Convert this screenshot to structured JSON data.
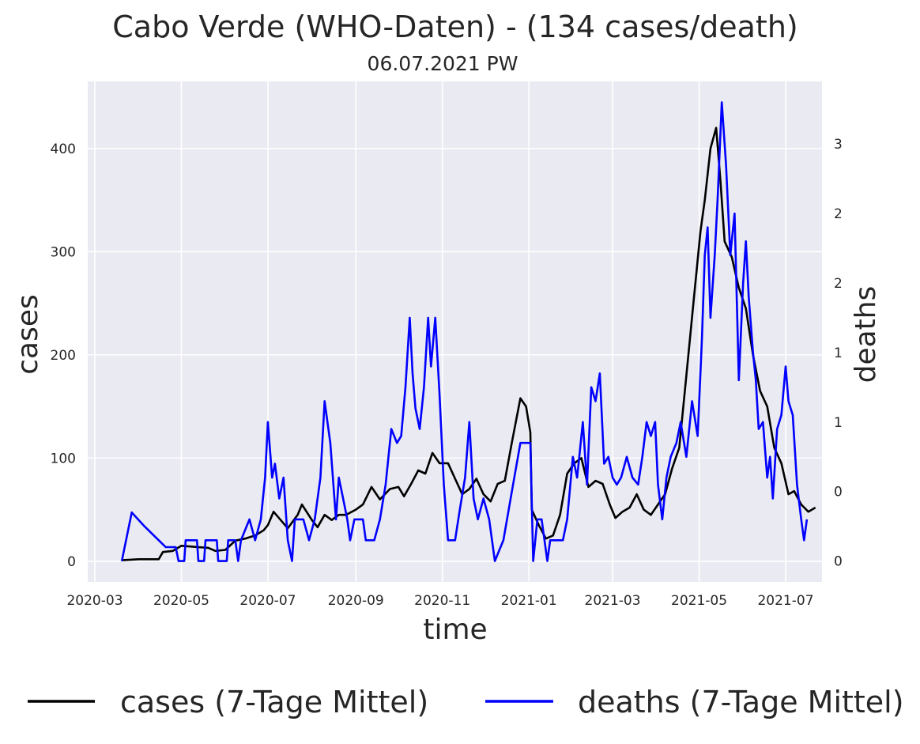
{
  "chart_data": {
    "type": "line",
    "title": "Cabo Verde (WHO-Daten) - (134 cases/death)",
    "subtitle": "06.07.2021 PW",
    "xlabel": "time",
    "ylabel_left": "cases",
    "ylabel_right": "deaths",
    "x_ticks": [
      "2020-03",
      "2020-05",
      "2020-07",
      "2020-09",
      "2020-11",
      "2021-01",
      "2021-03",
      "2021-05",
      "2021-07"
    ],
    "y_ticks_left": [
      "0",
      "100",
      "200",
      "300",
      "400"
    ],
    "y_ticks_right": [
      "0",
      "0",
      "1",
      "1",
      "2",
      "2",
      "3"
    ],
    "ylim_left": [
      -20,
      465
    ],
    "ylim_right": [
      -0.15,
      3.45
    ],
    "grid": true,
    "legend_position": "bottom",
    "colors": {
      "cases": "#000000",
      "deaths": "#0000ff",
      "background": "#eaeaf2",
      "grid": "#ffffff"
    },
    "series": [
      {
        "name": "cases (7-Tage Mittel)",
        "axis": "left",
        "points": [
          [
            "2020-03-20",
            1
          ],
          [
            "2020-04-01",
            2
          ],
          [
            "2020-04-15",
            2
          ],
          [
            "2020-04-18",
            9
          ],
          [
            "2020-04-25",
            10
          ],
          [
            "2020-05-01",
            15
          ],
          [
            "2020-05-10",
            14
          ],
          [
            "2020-05-20",
            13
          ],
          [
            "2020-05-25",
            10
          ],
          [
            "2020-06-01",
            11
          ],
          [
            "2020-06-08",
            20
          ],
          [
            "2020-06-15",
            22
          ],
          [
            "2020-06-22",
            25
          ],
          [
            "2020-06-28",
            30
          ],
          [
            "2020-07-01",
            35
          ],
          [
            "2020-07-05",
            48
          ],
          [
            "2020-07-10",
            40
          ],
          [
            "2020-07-15",
            32
          ],
          [
            "2020-07-22",
            45
          ],
          [
            "2020-07-25",
            55
          ],
          [
            "2020-08-01",
            40
          ],
          [
            "2020-08-05",
            33
          ],
          [
            "2020-08-10",
            45
          ],
          [
            "2020-08-15",
            40
          ],
          [
            "2020-08-20",
            45
          ],
          [
            "2020-08-25",
            45
          ],
          [
            "2020-09-01",
            50
          ],
          [
            "2020-09-06",
            55
          ],
          [
            "2020-09-12",
            72
          ],
          [
            "2020-09-18",
            60
          ],
          [
            "2020-09-25",
            70
          ],
          [
            "2020-10-01",
            72
          ],
          [
            "2020-10-05",
            63
          ],
          [
            "2020-10-10",
            75
          ],
          [
            "2020-10-15",
            88
          ],
          [
            "2020-10-20",
            85
          ],
          [
            "2020-10-25",
            105
          ],
          [
            "2020-10-30",
            95
          ],
          [
            "2020-11-05",
            95
          ],
          [
            "2020-11-10",
            80
          ],
          [
            "2020-11-15",
            65
          ],
          [
            "2020-11-20",
            70
          ],
          [
            "2020-11-25",
            80
          ],
          [
            "2020-11-30",
            65
          ],
          [
            "2020-12-05",
            58
          ],
          [
            "2020-12-10",
            75
          ],
          [
            "2020-12-15",
            78
          ],
          [
            "2020-12-20",
            115
          ],
          [
            "2020-12-26",
            158
          ],
          [
            "2020-12-30",
            150
          ],
          [
            "2021-01-02",
            125
          ],
          [
            "2021-01-03",
            50
          ],
          [
            "2021-01-08",
            35
          ],
          [
            "2021-01-13",
            22
          ],
          [
            "2021-01-18",
            25
          ],
          [
            "2021-01-23",
            45
          ],
          [
            "2021-01-28",
            85
          ],
          [
            "2021-02-02",
            95
          ],
          [
            "2021-02-07",
            100
          ],
          [
            "2021-02-12",
            72
          ],
          [
            "2021-02-17",
            78
          ],
          [
            "2021-02-22",
            75
          ],
          [
            "2021-02-27",
            55
          ],
          [
            "2021-03-03",
            42
          ],
          [
            "2021-03-08",
            48
          ],
          [
            "2021-03-13",
            52
          ],
          [
            "2021-03-18",
            65
          ],
          [
            "2021-03-23",
            50
          ],
          [
            "2021-03-28",
            45
          ],
          [
            "2021-04-02",
            55
          ],
          [
            "2021-04-07",
            65
          ],
          [
            "2021-04-12",
            90
          ],
          [
            "2021-04-17",
            110
          ],
          [
            "2021-04-22",
            180
          ],
          [
            "2021-04-27",
            250
          ],
          [
            "2021-05-02",
            320
          ],
          [
            "2021-05-05",
            350
          ],
          [
            "2021-05-09",
            400
          ],
          [
            "2021-05-13",
            420
          ],
          [
            "2021-05-16",
            370
          ],
          [
            "2021-05-19",
            310
          ],
          [
            "2021-05-24",
            295
          ],
          [
            "2021-05-29",
            265
          ],
          [
            "2021-06-03",
            245
          ],
          [
            "2021-06-08",
            200
          ],
          [
            "2021-06-13",
            165
          ],
          [
            "2021-06-18",
            150
          ],
          [
            "2021-06-23",
            110
          ],
          [
            "2021-06-28",
            95
          ],
          [
            "2021-07-03",
            65
          ],
          [
            "2021-07-07",
            68
          ],
          [
            "2021-07-12",
            55
          ],
          [
            "2021-07-17",
            48
          ],
          [
            "2021-07-22",
            52
          ]
        ]
      },
      {
        "name": "deaths (7-Tage Mittel)",
        "axis": "right",
        "points": [
          [
            "2020-03-20",
            0
          ],
          [
            "2020-03-27",
            0.35
          ],
          [
            "2020-04-05",
            0.25
          ],
          [
            "2020-04-15",
            0.15
          ],
          [
            "2020-04-20",
            0.1
          ],
          [
            "2020-04-27",
            0.1
          ],
          [
            "2020-04-29",
            0
          ],
          [
            "2020-05-03",
            0
          ],
          [
            "2020-05-04",
            0.15
          ],
          [
            "2020-05-12",
            0.15
          ],
          [
            "2020-05-13",
            0
          ],
          [
            "2020-05-17",
            0
          ],
          [
            "2020-05-18",
            0.15
          ],
          [
            "2020-05-26",
            0.15
          ],
          [
            "2020-05-27",
            0
          ],
          [
            "2020-06-02",
            0
          ],
          [
            "2020-06-03",
            0.15
          ],
          [
            "2020-06-08",
            0.15
          ],
          [
            "2020-06-10",
            0
          ],
          [
            "2020-06-12",
            0.15
          ],
          [
            "2020-06-18",
            0.3
          ],
          [
            "2020-06-22",
            0.15
          ],
          [
            "2020-06-26",
            0.3
          ],
          [
            "2020-06-29",
            0.6
          ],
          [
            "2020-07-01",
            1.0
          ],
          [
            "2020-07-04",
            0.6
          ],
          [
            "2020-07-06",
            0.7
          ],
          [
            "2020-07-09",
            0.45
          ],
          [
            "2020-07-12",
            0.6
          ],
          [
            "2020-07-15",
            0.15
          ],
          [
            "2020-07-18",
            0
          ],
          [
            "2020-07-20",
            0.3
          ],
          [
            "2020-07-26",
            0.3
          ],
          [
            "2020-07-30",
            0.15
          ],
          [
            "2020-08-03",
            0.3
          ],
          [
            "2020-08-07",
            0.6
          ],
          [
            "2020-08-10",
            1.15
          ],
          [
            "2020-08-14",
            0.85
          ],
          [
            "2020-08-18",
            0.3
          ],
          [
            "2020-08-20",
            0.6
          ],
          [
            "2020-08-23",
            0.45
          ],
          [
            "2020-08-26",
            0.3
          ],
          [
            "2020-08-28",
            0.15
          ],
          [
            "2020-08-31",
            0.3
          ],
          [
            "2020-09-06",
            0.3
          ],
          [
            "2020-09-08",
            0.15
          ],
          [
            "2020-09-14",
            0.15
          ],
          [
            "2020-09-18",
            0.3
          ],
          [
            "2020-09-22",
            0.55
          ],
          [
            "2020-09-26",
            0.95
          ],
          [
            "2020-09-30",
            0.85
          ],
          [
            "2020-10-03",
            0.9
          ],
          [
            "2020-10-06",
            1.25
          ],
          [
            "2020-10-09",
            1.75
          ],
          [
            "2020-10-11",
            1.35
          ],
          [
            "2020-10-13",
            1.1
          ],
          [
            "2020-10-16",
            0.95
          ],
          [
            "2020-10-19",
            1.25
          ],
          [
            "2020-10-22",
            1.75
          ],
          [
            "2020-10-24",
            1.4
          ],
          [
            "2020-10-27",
            1.75
          ],
          [
            "2020-10-30",
            1.2
          ],
          [
            "2020-11-02",
            0.55
          ],
          [
            "2020-11-05",
            0.15
          ],
          [
            "2020-11-10",
            0.15
          ],
          [
            "2020-11-13",
            0.35
          ],
          [
            "2020-11-17",
            0.6
          ],
          [
            "2020-11-20",
            1.0
          ],
          [
            "2020-11-23",
            0.45
          ],
          [
            "2020-11-26",
            0.3
          ],
          [
            "2020-11-30",
            0.45
          ],
          [
            "2020-12-04",
            0.3
          ],
          [
            "2020-12-08",
            0
          ],
          [
            "2020-12-14",
            0.15
          ],
          [
            "2020-12-20",
            0.5
          ],
          [
            "2020-12-26",
            0.85
          ],
          [
            "2021-01-02",
            0.85
          ],
          [
            "2021-01-04",
            0
          ],
          [
            "2021-01-07",
            0.3
          ],
          [
            "2021-01-10",
            0.3
          ],
          [
            "2021-01-12",
            0.15
          ],
          [
            "2021-01-14",
            0
          ],
          [
            "2021-01-16",
            0.15
          ],
          [
            "2021-01-20",
            0.15
          ],
          [
            "2021-01-25",
            0.15
          ],
          [
            "2021-01-28",
            0.3
          ],
          [
            "2021-02-01",
            0.75
          ],
          [
            "2021-02-04",
            0.6
          ],
          [
            "2021-02-08",
            1.0
          ],
          [
            "2021-02-11",
            0.55
          ],
          [
            "2021-02-14",
            1.25
          ],
          [
            "2021-02-17",
            1.15
          ],
          [
            "2021-02-20",
            1.35
          ],
          [
            "2021-02-23",
            0.7
          ],
          [
            "2021-02-26",
            0.75
          ],
          [
            "2021-03-01",
            0.6
          ],
          [
            "2021-03-04",
            0.55
          ],
          [
            "2021-03-07",
            0.6
          ],
          [
            "2021-03-11",
            0.75
          ],
          [
            "2021-03-15",
            0.6
          ],
          [
            "2021-03-19",
            0.55
          ],
          [
            "2021-03-22",
            0.75
          ],
          [
            "2021-03-25",
            1.0
          ],
          [
            "2021-03-28",
            0.9
          ],
          [
            "2021-03-31",
            1.0
          ],
          [
            "2021-04-02",
            0.55
          ],
          [
            "2021-04-05",
            0.3
          ],
          [
            "2021-04-08",
            0.6
          ],
          [
            "2021-04-11",
            0.75
          ],
          [
            "2021-04-15",
            0.85
          ],
          [
            "2021-04-18",
            1.0
          ],
          [
            "2021-04-22",
            0.75
          ],
          [
            "2021-04-26",
            1.15
          ],
          [
            "2021-04-30",
            0.9
          ],
          [
            "2021-05-03",
            1.6
          ],
          [
            "2021-05-05",
            2.2
          ],
          [
            "2021-05-07",
            2.4
          ],
          [
            "2021-05-09",
            1.75
          ],
          [
            "2021-05-12",
            2.2
          ],
          [
            "2021-05-14",
            2.6
          ],
          [
            "2021-05-17",
            3.3
          ],
          [
            "2021-05-20",
            2.85
          ],
          [
            "2021-05-23",
            2.2
          ],
          [
            "2021-05-26",
            2.5
          ],
          [
            "2021-05-29",
            1.3
          ],
          [
            "2021-06-01",
            2.0
          ],
          [
            "2021-06-03",
            2.3
          ],
          [
            "2021-06-05",
            1.9
          ],
          [
            "2021-06-08",
            1.5
          ],
          [
            "2021-06-10",
            1.3
          ],
          [
            "2021-06-12",
            0.95
          ],
          [
            "2021-06-15",
            1.0
          ],
          [
            "2021-06-18",
            0.6
          ],
          [
            "2021-06-20",
            0.75
          ],
          [
            "2021-06-22",
            0.45
          ],
          [
            "2021-06-25",
            0.95
          ],
          [
            "2021-06-28",
            1.05
          ],
          [
            "2021-07-01",
            1.4
          ],
          [
            "2021-07-03",
            1.15
          ],
          [
            "2021-07-06",
            1.05
          ],
          [
            "2021-07-09",
            0.55
          ],
          [
            "2021-07-12",
            0.3
          ],
          [
            "2021-07-14",
            0.15
          ],
          [
            "2021-07-16",
            0.3
          ]
        ]
      }
    ]
  }
}
